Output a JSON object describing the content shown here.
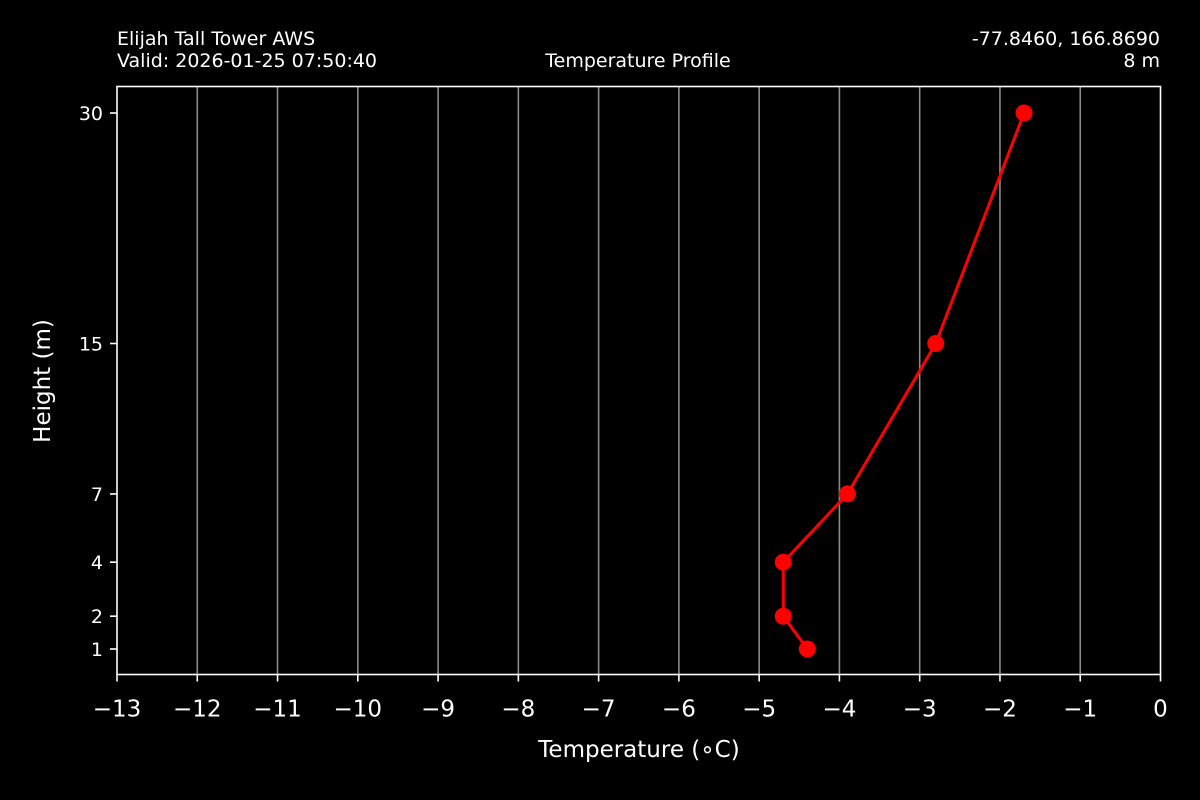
{
  "header": {
    "station_name": "Elijah Tall Tower AWS",
    "valid_time": "Valid: 2026-01-25 07:50:40",
    "center_title": "Temperature Profile",
    "coordinates": "-77.8460, 166.8690",
    "elevation": "8 m"
  },
  "chart_data": {
    "type": "line",
    "title": "Temperature Profile",
    "xlabel": "Temperature ($^\\circ$C)",
    "xlabel_display": "Temperature (∘C)",
    "ylabel": "Height (m)",
    "xlim": [
      -13,
      0
    ],
    "x_ticks": [
      -13,
      -12,
      -11,
      -10,
      -9,
      -8,
      -7,
      -6,
      -5,
      -4,
      -3,
      -2,
      -1,
      0
    ],
    "x_tick_labels": [
      "−13",
      "−12",
      "−11",
      "−10",
      "−9",
      "−8",
      "−7",
      "−6",
      "−5",
      "−4",
      "−3",
      "−2",
      "−1",
      "0"
    ],
    "y_ticks": [
      1,
      2,
      4,
      7,
      15,
      30
    ],
    "y_tick_labels": [
      "1",
      "2",
      "4",
      "7",
      "15",
      "30"
    ],
    "grid": "vertical",
    "series": [
      {
        "color": "#ff0000",
        "points": [
          {
            "height": 1,
            "temperature": -4.4
          },
          {
            "height": 2,
            "temperature": -4.7
          },
          {
            "height": 4,
            "temperature": -4.7
          },
          {
            "height": 7,
            "temperature": -3.9
          },
          {
            "height": 15,
            "temperature": -2.8
          },
          {
            "height": 30,
            "temperature": -1.7
          }
        ]
      }
    ]
  }
}
